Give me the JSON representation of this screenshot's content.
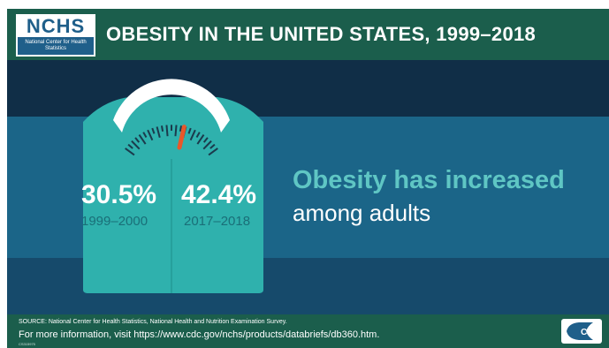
{
  "header": {
    "logo": {
      "abbrev": "NCHS",
      "full_name": "National Center for Health Statistics"
    },
    "title": "OBESITY IN THE UNITED STATES, 1999–2018"
  },
  "scale": {
    "dial_level": 0.62,
    "left": {
      "value": "30.5%",
      "period": "1999–2000"
    },
    "right": {
      "value": "42.4%",
      "period": "2017–2018"
    }
  },
  "message": {
    "headline": "Obesity has increased",
    "subline": "among adults"
  },
  "footer": {
    "source": "SOURCE: National Center for Health Statistics, National Health and Nutrition Examination Survey.",
    "more_info": "For more information, visit https://www.cdc.gov/nchs/products/databriefs/db360.htm.",
    "code": "CS315975",
    "cdc_logo": "CDC"
  },
  "colors": {
    "header_green": "#1b5e4c",
    "band_dark": "#102e47",
    "band_light": "#1b6588",
    "scale_teal": "#2fb1ad",
    "headline_teal": "#5fc6c4",
    "needle_orange": "#e8582a"
  },
  "icons": [
    "nchs-logo",
    "bathroom-scale-icon",
    "cdc-logo-icon"
  ]
}
